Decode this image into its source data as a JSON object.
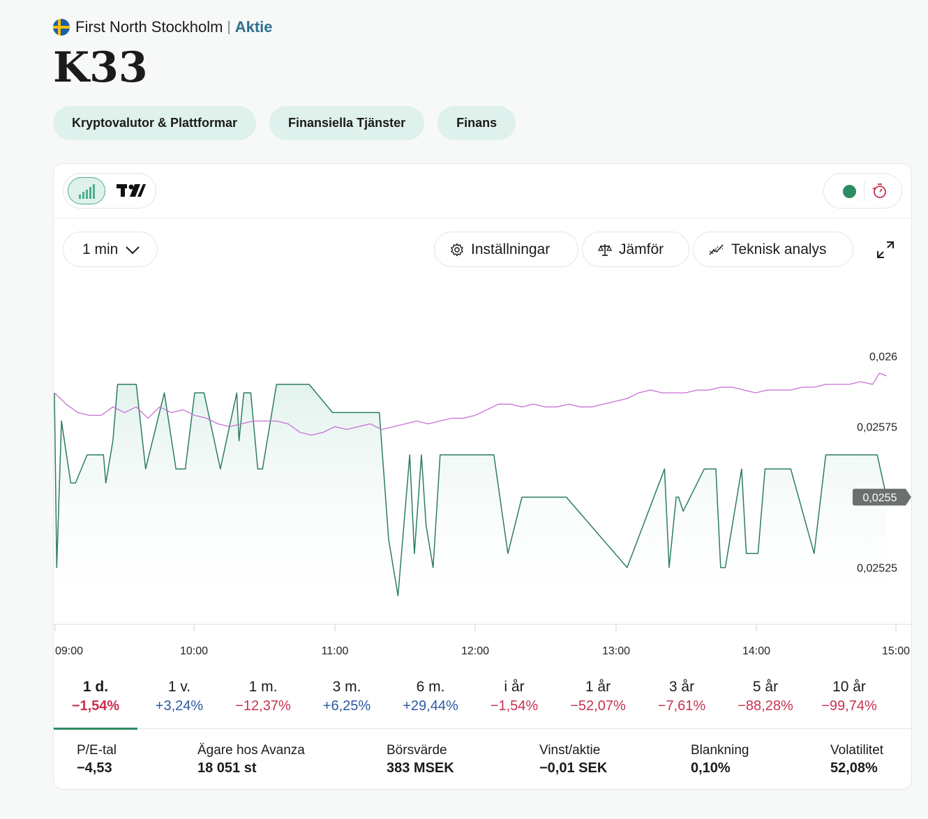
{
  "header": {
    "market": "First North Stockholm",
    "separator": "|",
    "type_link": "Aktie",
    "ticker": "K33"
  },
  "tags": [
    "Kryptovalutor & Plattformar",
    "Finansiella Tjänster",
    "Finans"
  ],
  "toolbar": {
    "interval": "1 min",
    "settings": "Inställningar",
    "compare": "Jämför",
    "technical": "Teknisk analys"
  },
  "icons": {
    "chart_type": "bar-chart-icon",
    "tradingview": "tradingview-logo-icon",
    "live_status": "live-status-dot",
    "timer": "timer-icon",
    "settings": "gear-icon",
    "compare": "scale-icon",
    "technical": "indicator-icon",
    "expand": "expand-icon",
    "interval_chevron": "chevron-down-icon"
  },
  "colors": {
    "price_line": "#2e7d5b",
    "compare_line": "#c86fd6",
    "positive": "#2c5aa0",
    "negative": "#c8314f",
    "live": "#2e8a63",
    "tag_bg": "#dff1ec"
  },
  "chart_data": {
    "type": "line",
    "x_ticks": [
      "09:00",
      "10:00",
      "11:00",
      "12:00",
      "13:00",
      "14:00",
      "15:00"
    ],
    "y_ticks": [
      "0,026",
      "0,02575",
      "0,0255",
      "0,02525"
    ],
    "ylim": [
      0.02515,
      0.02615
    ],
    "current_price_label": "0,0255",
    "current_price": 0.0255,
    "grid": false,
    "series": [
      {
        "role": "price",
        "points": [
          [
            0,
            0.02587
          ],
          [
            1,
            0.02525
          ],
          [
            3,
            0.02577
          ],
          [
            7,
            0.02555
          ],
          [
            9,
            0.02555
          ],
          [
            14,
            0.02565
          ],
          [
            21,
            0.02565
          ],
          [
            22,
            0.02555
          ],
          [
            25,
            0.0257
          ],
          [
            27,
            0.0259
          ],
          [
            35,
            0.0259
          ],
          [
            39,
            0.0256
          ],
          [
            47,
            0.02587
          ],
          [
            52,
            0.0256
          ],
          [
            56,
            0.0256
          ],
          [
            60,
            0.02587
          ],
          [
            64,
            0.02587
          ],
          [
            71,
            0.0256
          ],
          [
            78,
            0.02587
          ],
          [
            79,
            0.0257
          ],
          [
            81,
            0.02587
          ],
          [
            84,
            0.02587
          ],
          [
            87,
            0.0256
          ],
          [
            89,
            0.0256
          ],
          [
            95,
            0.0259
          ],
          [
            109,
            0.0259
          ],
          [
            119,
            0.0258
          ],
          [
            139,
            0.0258
          ],
          [
            143,
            0.02535
          ],
          [
            147,
            0.02515
          ],
          [
            152,
            0.02565
          ],
          [
            154,
            0.0253
          ],
          [
            157,
            0.02565
          ],
          [
            159,
            0.0254
          ],
          [
            162,
            0.02525
          ],
          [
            165,
            0.02565
          ],
          [
            188,
            0.02565
          ],
          [
            194,
            0.0253
          ],
          [
            200,
            0.0255
          ],
          [
            219,
            0.0255
          ],
          [
            245,
            0.02525
          ],
          [
            261,
            0.0256
          ],
          [
            263,
            0.02525
          ],
          [
            266,
            0.0255
          ],
          [
            267,
            0.0255
          ],
          [
            269,
            0.02545
          ],
          [
            278,
            0.0256
          ],
          [
            283,
            0.0256
          ],
          [
            285,
            0.02525
          ],
          [
            287,
            0.02525
          ],
          [
            294,
            0.0256
          ],
          [
            296,
            0.0253
          ],
          [
            301,
            0.0253
          ],
          [
            304,
            0.0256
          ],
          [
            315,
            0.0256
          ],
          [
            325,
            0.0253
          ],
          [
            330,
            0.02565
          ],
          [
            352,
            0.02565
          ],
          [
            356,
            0.0255
          ]
        ]
      },
      {
        "role": "compare",
        "points": [
          [
            0,
            0.02587
          ],
          [
            5,
            0.02583
          ],
          [
            10,
            0.0258
          ],
          [
            15,
            0.02579
          ],
          [
            20,
            0.02579
          ],
          [
            25,
            0.02582
          ],
          [
            30,
            0.0258
          ],
          [
            35,
            0.02582
          ],
          [
            40,
            0.02578
          ],
          [
            45,
            0.02582
          ],
          [
            50,
            0.0258
          ],
          [
            55,
            0.02581
          ],
          [
            60,
            0.02579
          ],
          [
            65,
            0.02578
          ],
          [
            70,
            0.02576
          ],
          [
            75,
            0.02575
          ],
          [
            80,
            0.02576
          ],
          [
            85,
            0.02577
          ],
          [
            90,
            0.02577
          ],
          [
            95,
            0.02577
          ],
          [
            100,
            0.02576
          ],
          [
            105,
            0.02573
          ],
          [
            110,
            0.02572
          ],
          [
            115,
            0.02573
          ],
          [
            120,
            0.02575
          ],
          [
            125,
            0.02574
          ],
          [
            130,
            0.02575
          ],
          [
            135,
            0.02576
          ],
          [
            140,
            0.02574
          ],
          [
            145,
            0.02575
          ],
          [
            150,
            0.02576
          ],
          [
            155,
            0.02577
          ],
          [
            160,
            0.02576
          ],
          [
            165,
            0.02577
          ],
          [
            170,
            0.02578
          ],
          [
            175,
            0.02578
          ],
          [
            180,
            0.02579
          ],
          [
            185,
            0.02581
          ],
          [
            190,
            0.02583
          ],
          [
            195,
            0.02583
          ],
          [
            200,
            0.02582
          ],
          [
            205,
            0.02583
          ],
          [
            210,
            0.02582
          ],
          [
            215,
            0.02582
          ],
          [
            220,
            0.02583
          ],
          [
            225,
            0.02582
          ],
          [
            230,
            0.02582
          ],
          [
            235,
            0.02583
          ],
          [
            240,
            0.02584
          ],
          [
            245,
            0.02585
          ],
          [
            250,
            0.02587
          ],
          [
            255,
            0.02588
          ],
          [
            260,
            0.02587
          ],
          [
            265,
            0.02587
          ],
          [
            270,
            0.02587
          ],
          [
            275,
            0.02588
          ],
          [
            280,
            0.02588
          ],
          [
            285,
            0.02589
          ],
          [
            290,
            0.02589
          ],
          [
            295,
            0.02588
          ],
          [
            300,
            0.02587
          ],
          [
            305,
            0.02588
          ],
          [
            310,
            0.02588
          ],
          [
            315,
            0.02588
          ],
          [
            320,
            0.02589
          ],
          [
            325,
            0.02589
          ],
          [
            330,
            0.0259
          ],
          [
            335,
            0.0259
          ],
          [
            340,
            0.0259
          ],
          [
            345,
            0.02591
          ],
          [
            350,
            0.0259
          ],
          [
            353,
            0.02594
          ],
          [
            356,
            0.02593
          ]
        ]
      }
    ]
  },
  "periods": [
    {
      "label": "1 d.",
      "value": "−1,54%",
      "sign": "neg",
      "active": true
    },
    {
      "label": "1 v.",
      "value": "+3,24%",
      "sign": "pos"
    },
    {
      "label": "1 m.",
      "value": "−12,37%",
      "sign": "neg"
    },
    {
      "label": "3 m.",
      "value": "+6,25%",
      "sign": "pos"
    },
    {
      "label": "6 m.",
      "value": "+29,44%",
      "sign": "pos"
    },
    {
      "label": "i år",
      "value": "−1,54%",
      "sign": "neg"
    },
    {
      "label": "1 år",
      "value": "−52,07%",
      "sign": "neg"
    },
    {
      "label": "3 år",
      "value": "−7,61%",
      "sign": "neg"
    },
    {
      "label": "5 år",
      "value": "−88,28%",
      "sign": "neg"
    },
    {
      "label": "10 år",
      "value": "−99,74%",
      "sign": "neg"
    }
  ],
  "stats": [
    {
      "label": "P/E-tal",
      "value": "−4,53"
    },
    {
      "label": "Ägare hos Avanza",
      "value": "18 051 st"
    },
    {
      "label": "Börsvärde",
      "value": "383 MSEK"
    },
    {
      "label": "Vinst/aktie",
      "value": "−0,01 SEK"
    },
    {
      "label": "Blankning",
      "value": "0,10%"
    },
    {
      "label": "Volatilitet",
      "value": "52,08%"
    }
  ]
}
